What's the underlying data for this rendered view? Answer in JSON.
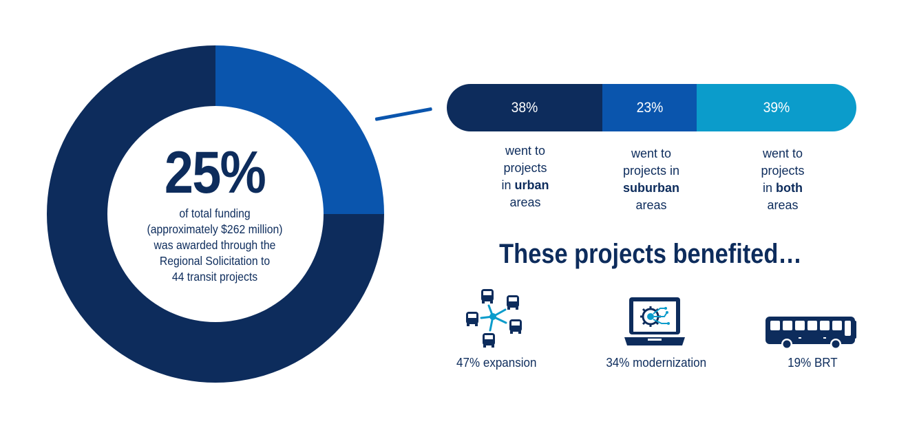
{
  "chart_data": {
    "type": "pie",
    "title": "25%",
    "subtitle": [
      "of total funding",
      "(approximately $262 million)",
      "was awarded through the",
      "Regional Solicitation to",
      "44 transit projects"
    ],
    "slices": [
      {
        "value": 25,
        "color": "#0a55ad"
      },
      {
        "value": 75,
        "color": "#0d2c5c"
      }
    ]
  },
  "breakdown": {
    "segments": [
      {
        "label": "38%",
        "value": 38,
        "color": "#0d2c5c",
        "note_pre": "went to projects in",
        "note_bold": "urban",
        "note_post": "areas"
      },
      {
        "label": "23%",
        "value": 23,
        "color": "#0a55ad",
        "note_pre": "went to projects in",
        "note_bold": "suburban",
        "note_post": "areas"
      },
      {
        "label": "39%",
        "value": 39,
        "color": "#0b9ccb",
        "note_pre": "went to projects in",
        "note_bold": "both",
        "note_post": "areas"
      }
    ]
  },
  "benefits": {
    "heading": "These projects benefited…",
    "items": [
      {
        "label": "47% expansion",
        "icon": "bus-network-icon"
      },
      {
        "label": "34% modernization",
        "icon": "laptop-gear-icon"
      },
      {
        "label": "19% BRT",
        "icon": "bus-icon"
      }
    ]
  },
  "colors": {
    "navy": "#0d2c5c",
    "blue": "#0a55ad",
    "light_blue": "#0b9ccb"
  }
}
